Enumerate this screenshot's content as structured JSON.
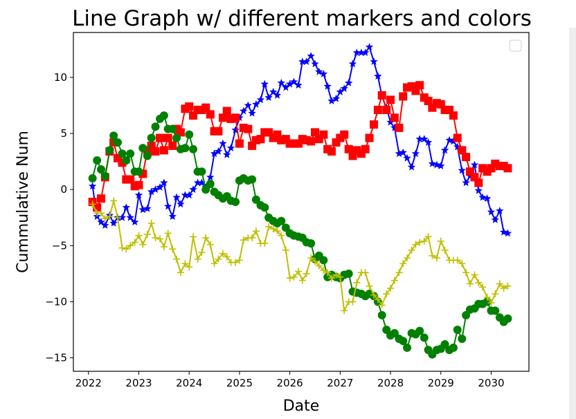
{
  "chart_data": {
    "type": "line",
    "title": "Line Graph w/ different markers and colors",
    "xlabel": "Date",
    "ylabel": "Cummulative Num",
    "x_ticks": [
      "2022",
      "2023",
      "2024",
      "2025",
      "2026",
      "2027",
      "2028",
      "2029",
      "2030"
    ],
    "y_ticks": [
      10,
      5,
      0,
      -5,
      -10,
      -15
    ],
    "xlim": [
      2021.7,
      2030.75
    ],
    "ylim": [
      -16.2,
      14
    ],
    "grid": false,
    "legend": "top-right, empty",
    "series": [
      {
        "color": "#0000ff",
        "marker": "star",
        "x": [
          2022.08,
          2022.17,
          2022.25,
          2022.33,
          2022.42,
          2022.5,
          2022.58,
          2022.67,
          2022.75,
          2022.83,
          2022.92,
          2023.0,
          2023.08,
          2023.17,
          2023.25,
          2023.33,
          2023.42,
          2023.5,
          2023.58,
          2023.67,
          2023.75,
          2023.83,
          2023.92,
          2024.0,
          2024.08,
          2024.17,
          2024.25,
          2024.33,
          2024.42,
          2024.5,
          2024.58,
          2024.67,
          2024.75,
          2024.83,
          2024.92,
          2025.0,
          2025.08,
          2025.17,
          2025.25,
          2025.33,
          2025.42,
          2025.5,
          2025.58,
          2025.67,
          2025.75,
          2025.83,
          2025.92,
          2026.0,
          2026.08,
          2026.17,
          2026.25,
          2026.33,
          2026.42,
          2026.5,
          2026.58,
          2026.67,
          2026.75,
          2026.83,
          2026.92,
          2027.0,
          2027.08,
          2027.17,
          2027.25,
          2027.33,
          2027.42,
          2027.5,
          2027.58,
          2027.67,
          2027.75,
          2027.83,
          2027.92,
          2028.0,
          2028.08,
          2028.17,
          2028.25,
          2028.33,
          2028.42,
          2028.5,
          2028.58,
          2028.67,
          2028.75,
          2028.83,
          2028.92,
          2029.0,
          2029.08,
          2029.17,
          2029.25,
          2029.33,
          2029.42,
          2029.5,
          2029.58,
          2029.67,
          2029.75,
          2029.83,
          2029.92,
          2030.0,
          2030.08,
          2030.17,
          2030.25,
          2030.33
        ],
        "y": [
          0.3,
          -2.4,
          -2.9,
          -3.2,
          -2.3,
          -3.0,
          -2.5,
          -2.5,
          -1.6,
          -2.5,
          -2.9,
          -0.5,
          -1.8,
          -1.7,
          -0.2,
          -0.0,
          0.2,
          0.6,
          -1.5,
          -2.4,
          -0.7,
          -1.3,
          -0.5,
          -0.5,
          -0.0,
          0.6,
          0.6,
          0.2,
          1.1,
          3.2,
          3.4,
          4.1,
          3.1,
          3.7,
          5.3,
          6.4,
          7.0,
          7.5,
          6.8,
          7.6,
          8.0,
          9.4,
          8.2,
          8.7,
          8.4,
          9.5,
          9.1,
          9.4,
          9.6,
          9.3,
          11.4,
          11.4,
          11.9,
          11.2,
          10.5,
          10.3,
          9.2,
          7.9,
          8.1,
          8.7,
          9.0,
          9.5,
          11.2,
          12.2,
          12.2,
          12.2,
          12.7,
          11.4,
          10.1,
          8.3,
          7.3,
          6.0,
          5.5,
          3.2,
          3.3,
          2.8,
          2.0,
          3.2,
          4.5,
          4.5,
          4.2,
          2.3,
          2.2,
          2.1,
          3.5,
          4.4,
          4.3,
          3.8,
          1.7,
          0.6,
          1.2,
          2.2,
          -0.1,
          -0.7,
          -0.8,
          -2.0,
          -2.7,
          -1.9,
          -3.8,
          -3.9
        ]
      },
      {
        "color": "#ff0000",
        "marker": "square",
        "x": [
          2022.08,
          2022.17,
          2022.25,
          2022.33,
          2022.42,
          2022.5,
          2022.58,
          2022.67,
          2022.75,
          2022.83,
          2022.92,
          2023.0,
          2023.08,
          2023.17,
          2023.25,
          2023.33,
          2023.42,
          2023.5,
          2023.58,
          2023.67,
          2023.75,
          2023.83,
          2023.92,
          2024.0,
          2024.08,
          2024.17,
          2024.25,
          2024.33,
          2024.42,
          2024.5,
          2024.58,
          2024.67,
          2024.75,
          2024.83,
          2024.92,
          2025.0,
          2025.08,
          2025.17,
          2025.25,
          2025.33,
          2025.42,
          2025.5,
          2025.58,
          2025.67,
          2025.75,
          2025.83,
          2025.92,
          2026.0,
          2026.08,
          2026.17,
          2026.25,
          2026.33,
          2026.42,
          2026.5,
          2026.58,
          2026.67,
          2026.75,
          2026.83,
          2026.92,
          2027.0,
          2027.08,
          2027.17,
          2027.25,
          2027.33,
          2027.42,
          2027.5,
          2027.58,
          2027.67,
          2027.75,
          2027.83,
          2027.92,
          2028.0,
          2028.08,
          2028.17,
          2028.25,
          2028.33,
          2028.42,
          2028.5,
          2028.58,
          2028.67,
          2028.75,
          2028.83,
          2028.92,
          2029.0,
          2029.08,
          2029.17,
          2029.25,
          2029.33,
          2029.42,
          2029.5,
          2029.58,
          2029.67,
          2029.75,
          2029.83,
          2029.92,
          2030.0,
          2030.08,
          2030.17,
          2030.25,
          2030.33
        ],
        "y": [
          -1.1,
          -1.6,
          -0.8,
          1.1,
          3.4,
          4.2,
          2.8,
          2.4,
          0.9,
          0.9,
          0.3,
          0.4,
          1.4,
          3.5,
          3.9,
          3.4,
          4.6,
          3.5,
          4.6,
          3.9,
          5.4,
          5.1,
          7.2,
          7.4,
          6.6,
          7.1,
          7.1,
          7.3,
          6.7,
          5.2,
          5.2,
          6.4,
          7.0,
          6.3,
          6.4,
          4.1,
          5.5,
          5.4,
          3.9,
          4.4,
          4.5,
          5.1,
          5.1,
          4.6,
          4.9,
          4.4,
          4.5,
          4.1,
          4.1,
          4.1,
          4.5,
          4.4,
          4.3,
          5.1,
          4.5,
          4.9,
          3.6,
          3.4,
          4.2,
          4.6,
          4.9,
          3.6,
          3.0,
          3.5,
          3.2,
          3.6,
          4.6,
          5.8,
          7.1,
          8.4,
          7.1,
          8.0,
          6.4,
          5.5,
          8.3,
          9.1,
          9.2,
          8.8,
          9.3,
          8.2,
          7.9,
          7.3,
          7.7,
          7.6,
          7.1,
          7.1,
          6.6,
          4.6,
          3.5,
          2.9,
          1.6,
          1.1,
          0.6,
          1.9,
          1.6,
          1.9,
          2.3,
          2.1,
          2.1,
          1.9
        ]
      },
      {
        "color": "#008000",
        "marker": "circle",
        "x": [
          2022.08,
          2022.17,
          2022.25,
          2022.33,
          2022.42,
          2022.5,
          2022.58,
          2022.67,
          2022.75,
          2022.83,
          2022.92,
          2023.0,
          2023.08,
          2023.17,
          2023.25,
          2023.33,
          2023.42,
          2023.5,
          2023.58,
          2023.67,
          2023.75,
          2023.83,
          2023.92,
          2024.0,
          2024.08,
          2024.17,
          2024.25,
          2024.33,
          2024.42,
          2024.5,
          2024.58,
          2024.67,
          2024.75,
          2024.83,
          2024.92,
          2025.0,
          2025.08,
          2025.17,
          2025.25,
          2025.33,
          2025.42,
          2025.5,
          2025.58,
          2025.67,
          2025.75,
          2025.83,
          2025.92,
          2026.0,
          2026.08,
          2026.17,
          2026.25,
          2026.33,
          2026.42,
          2026.5,
          2026.58,
          2026.67,
          2026.75,
          2026.83,
          2026.92,
          2027.0,
          2027.08,
          2027.17,
          2027.25,
          2027.33,
          2027.42,
          2027.5,
          2027.58,
          2027.67,
          2027.75,
          2027.83,
          2027.92,
          2028.0,
          2028.08,
          2028.17,
          2028.25,
          2028.33,
          2028.42,
          2028.5,
          2028.58,
          2028.67,
          2028.75,
          2028.83,
          2028.92,
          2029.0,
          2029.08,
          2029.17,
          2029.25,
          2029.33,
          2029.42,
          2029.5,
          2029.58,
          2029.67,
          2029.75,
          2029.83,
          2029.92,
          2030.0,
          2030.08,
          2030.17,
          2030.25,
          2030.33
        ],
        "y": [
          1.0,
          2.6,
          1.8,
          1.2,
          3.5,
          4.8,
          4.2,
          3.2,
          2.6,
          3.2,
          1.6,
          1.6,
          3.7,
          3.0,
          4.6,
          5.6,
          6.3,
          6.6,
          5.4,
          5.4,
          4.6,
          3.6,
          3.7,
          4.9,
          3.6,
          1.6,
          1.6,
          0.0,
          0.5,
          -0.2,
          -0.5,
          -0.8,
          -0.6,
          -1.0,
          -1.1,
          0.8,
          1.0,
          0.8,
          0.9,
          -0.9,
          -1.4,
          -1.6,
          -2.5,
          -2.8,
          -3.0,
          -2.8,
          -3.4,
          -3.9,
          -4.1,
          -4.2,
          -4.3,
          -4.7,
          -4.8,
          -6.2,
          -5.9,
          -6.3,
          -7.8,
          -7.6,
          -7.8,
          -7.9,
          -7.6,
          -7.5,
          -9.1,
          -9.2,
          -9.3,
          -9.5,
          -9.3,
          -9.5,
          -10.0,
          -11.2,
          -12.5,
          -13.0,
          -12.8,
          -13.3,
          -13.5,
          -14.1,
          -12.8,
          -12.9,
          -12.6,
          -13.2,
          -14.3,
          -14.7,
          -14.3,
          -14.2,
          -13.8,
          -14.3,
          -14.1,
          -12.5,
          -13.3,
          -11.2,
          -10.7,
          -10.6,
          -10.2,
          -10.2,
          -10.0,
          -10.8,
          -10.8,
          -11.4,
          -11.8,
          -11.5
        ]
      },
      {
        "color": "#bfbf00",
        "marker": "plus",
        "x": [
          2022.08,
          2022.17,
          2022.25,
          2022.33,
          2022.42,
          2022.5,
          2022.58,
          2022.67,
          2022.75,
          2022.83,
          2022.92,
          2023.0,
          2023.08,
          2023.17,
          2023.25,
          2023.33,
          2023.42,
          2023.5,
          2023.58,
          2023.67,
          2023.75,
          2023.83,
          2023.92,
          2024.0,
          2024.08,
          2024.17,
          2024.25,
          2024.33,
          2024.42,
          2024.5,
          2024.58,
          2024.67,
          2024.75,
          2024.83,
          2024.92,
          2025.0,
          2025.08,
          2025.17,
          2025.25,
          2025.33,
          2025.42,
          2025.5,
          2025.58,
          2025.67,
          2025.75,
          2025.83,
          2025.92,
          2026.0,
          2026.08,
          2026.17,
          2026.25,
          2026.33,
          2026.42,
          2026.5,
          2026.58,
          2026.67,
          2026.75,
          2026.83,
          2026.92,
          2027.0,
          2027.08,
          2027.17,
          2027.25,
          2027.33,
          2027.42,
          2027.5,
          2027.58,
          2027.67,
          2027.75,
          2027.83,
          2027.92,
          2028.0,
          2028.08,
          2028.17,
          2028.25,
          2028.33,
          2028.42,
          2028.5,
          2028.58,
          2028.67,
          2028.75,
          2028.83,
          2028.92,
          2029.0,
          2029.08,
          2029.17,
          2029.25,
          2029.33,
          2029.42,
          2029.5,
          2029.58,
          2029.67,
          2029.75,
          2029.83,
          2029.92,
          2030.0,
          2030.08,
          2030.17,
          2030.25,
          2030.33
        ],
        "y": [
          -1.3,
          -2.1,
          -2.1,
          -2.6,
          -2.4,
          -1.0,
          -2.5,
          -5.2,
          -5.3,
          -5.0,
          -4.7,
          -4.1,
          -4.9,
          -4.0,
          -3.0,
          -4.3,
          -4.4,
          -5.1,
          -3.9,
          -5.3,
          -6.2,
          -7.4,
          -6.6,
          -6.9,
          -4.2,
          -6.2,
          -5.6,
          -4.3,
          -4.9,
          -6.6,
          -6.2,
          -5.7,
          -6.0,
          -6.5,
          -6.5,
          -6.3,
          -4.5,
          -4.3,
          -4.3,
          -3.7,
          -4.8,
          -4.8,
          -3.3,
          -3.5,
          -3.7,
          -4.1,
          -5.4,
          -7.9,
          -7.8,
          -7.3,
          -8.1,
          -7.5,
          -6.1,
          -6.4,
          -6.8,
          -7.2,
          -7.4,
          -7.9,
          -7.6,
          -7.8,
          -10.8,
          -10.0,
          -10.0,
          -8.3,
          -7.4,
          -7.4,
          -8.6,
          -9.4,
          -9.8,
          -10.3,
          -9.3,
          -8.8,
          -8.1,
          -7.4,
          -6.6,
          -6.1,
          -5.4,
          -4.9,
          -4.7,
          -4.6,
          -4.2,
          -5.9,
          -6.1,
          -4.6,
          -5.4,
          -6.3,
          -6.3,
          -6.3,
          -6.6,
          -7.4,
          -8.4,
          -7.6,
          -8.3,
          -8.7,
          -9.6,
          -10.1,
          -9.3,
          -8.4,
          -8.8,
          -8.6
        ]
      }
    ]
  }
}
